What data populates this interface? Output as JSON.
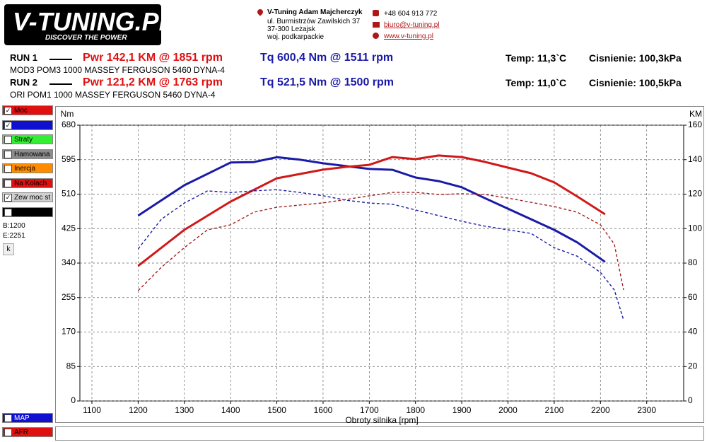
{
  "header": {
    "logo": "V-TUNING.PL",
    "slogan": "DISCOVER THE POWER",
    "company": "V-Tuning Adam Majcherczyk",
    "address": [
      "ul. Burmistrzów Zawilskich 37",
      "37-300 Leżajsk",
      "woj. podkarpackie"
    ],
    "phone": "+48 604 913 772",
    "email": "biuro@v-tuning.pl",
    "website": "www.v-tuning.pl"
  },
  "runs": [
    {
      "label": "RUN 1",
      "power": "Pwr  142,1 KM @ 1851 rpm",
      "torque": "Tq 600,4 Nm @ 1511 rpm",
      "temp": "Temp: 11,3`C",
      "pressure": "Cisnienie: 100,3kPa",
      "description": "MOD3 POM3 1000 MASSEY FERGUSON 5460 DYNA-4"
    },
    {
      "label": "RUN 2",
      "power": "Pwr  121,2 KM @ 1763 rpm",
      "torque": "Tq 521,5 Nm @ 1500 rpm",
      "temp": "Temp: 11,0`C",
      "pressure": "Cisnienie: 100,5kPa",
      "description": "ORI POM1 1000 MASSEY FERGUSON 5460 DYNA-4"
    }
  ],
  "sidebar": {
    "items": [
      {
        "label": "Moc",
        "color": "#e01010",
        "checked": true
      },
      {
        "color": "#1010d0",
        "checked": true
      },
      {
        "label": "Straty",
        "color": "#33ee33",
        "checked": false
      },
      {
        "label": "Hamowana",
        "color": "#8c8c8c",
        "checked": false
      },
      {
        "label": "Inercja",
        "color": "#ff8c00",
        "checked": false
      },
      {
        "label": "Na Kolach",
        "color": "#e01010",
        "checked": false
      },
      {
        "label": "Zew moc st",
        "color": "#d0d0d0",
        "checked": true
      },
      {
        "color": "#000000",
        "checked": false
      }
    ],
    "begin": "B:1200",
    "end": "E:2251",
    "button": "k",
    "bottom_items": [
      {
        "label": "MAP",
        "color": "#1010d0",
        "checked": false
      },
      {
        "label": "AFR",
        "color": "#e01010",
        "checked": false
      }
    ]
  },
  "chart_data": {
    "type": "line",
    "y_label": "Nm",
    "y2_label": "KM",
    "x_label": "Obroty silnika [rpm]",
    "xlim": [
      1074,
      2380
    ],
    "xticks": [
      1100,
      1200,
      1300,
      1400,
      1500,
      1600,
      1700,
      1800,
      1900,
      2000,
      2100,
      2200,
      2300
    ],
    "ylim": [
      0,
      680
    ],
    "yticks": [
      0,
      85,
      170,
      255,
      340,
      425,
      510,
      595,
      680
    ],
    "y2lim": [
      0,
      160
    ],
    "y2ticks": [
      0,
      20,
      40,
      60,
      80,
      100,
      120,
      140,
      160
    ],
    "grid": true,
    "series": [
      {
        "color": "#1a1aa8",
        "dashed": false,
        "axis": "y",
        "x": [
          1200,
          1300,
          1400,
          1450,
          1500,
          1550,
          1600,
          1650,
          1700,
          1750,
          1800,
          1850,
          1900,
          1950,
          2000,
          2100,
          2150,
          2210
        ],
        "values": [
          457,
          532,
          588,
          589,
          601,
          595,
          586,
          579,
          572,
          570,
          551,
          542,
          527,
          500,
          474,
          422,
          391,
          343
        ]
      },
      {
        "color": "#d01818",
        "dashed": false,
        "axis": "y2",
        "x": [
          1200,
          1300,
          1400,
          1500,
          1550,
          1600,
          1650,
          1700,
          1750,
          1800,
          1850,
          1900,
          1950,
          2000,
          2050,
          2100,
          2150,
          2210
        ],
        "values": [
          78.4,
          99.3,
          115.7,
          129.2,
          131.7,
          134.2,
          135.8,
          137,
          141.5,
          140.3,
          142.4,
          141.5,
          138.7,
          135.4,
          132.1,
          126.8,
          118.6,
          108.3
        ]
      },
      {
        "color": "#1a1aa8",
        "dashed": true,
        "axis": "y",
        "x": [
          1200,
          1250,
          1300,
          1350,
          1400,
          1450,
          1500,
          1550,
          1600,
          1650,
          1700,
          1750,
          1800,
          1850,
          1900,
          1950,
          2000,
          2050,
          2100,
          2150,
          2200,
          2230,
          2250
        ],
        "values": [
          375,
          448,
          488,
          518,
          514,
          518,
          521,
          514,
          506,
          495,
          488,
          485,
          471,
          457,
          443,
          431,
          422,
          413,
          378,
          357,
          317,
          274,
          200
        ]
      },
      {
        "color": "#a02020",
        "dashed": true,
        "axis": "y2",
        "x": [
          1200,
          1250,
          1300,
          1350,
          1400,
          1450,
          1500,
          1600,
          1650,
          1700,
          1750,
          1800,
          1850,
          1900,
          1950,
          2000,
          2100,
          2150,
          2200,
          2230,
          2250
        ],
        "values": [
          64,
          77.5,
          89,
          99.3,
          102.2,
          109.5,
          112.4,
          114.9,
          116.9,
          119,
          121,
          121,
          119.8,
          120.2,
          119.8,
          117.7,
          112.8,
          109.5,
          102.2,
          91,
          64.4
        ]
      }
    ]
  }
}
